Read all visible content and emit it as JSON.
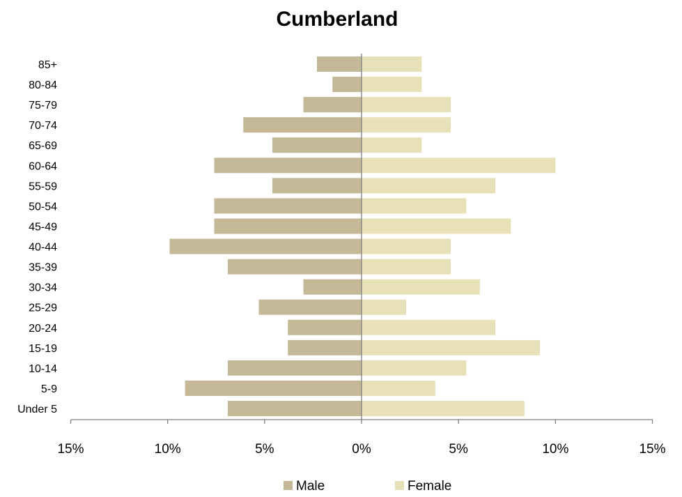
{
  "chart_data": {
    "type": "bar",
    "orientation": "horizontal",
    "subtype": "population-pyramid",
    "title": "Cumberland",
    "categories": [
      "85+",
      "80-84",
      "75-79",
      "70-74",
      "65-69",
      "60-64",
      "55-59",
      "50-54",
      "45-49",
      "40-44",
      "35-39",
      "30-34",
      "25-29",
      "20-24",
      "15-19",
      "10-14",
      "5-9",
      "Under 5"
    ],
    "series": [
      {
        "name": "Male",
        "color": "#c4b896",
        "direction": "left",
        "values": [
          2.3,
          1.5,
          3.0,
          6.1,
          4.6,
          7.6,
          4.6,
          7.6,
          7.6,
          9.9,
          6.9,
          3.0,
          5.3,
          3.8,
          3.8,
          6.9,
          9.1,
          6.9
        ]
      },
      {
        "name": "Female",
        "color": "#e8e0b6",
        "direction": "right",
        "values": [
          3.1,
          3.1,
          4.6,
          4.6,
          3.1,
          10.0,
          6.9,
          5.4,
          7.7,
          4.6,
          4.6,
          6.1,
          2.3,
          6.9,
          9.2,
          5.4,
          3.8,
          8.4
        ]
      }
    ],
    "xlim": [
      -15,
      15
    ],
    "xticks": [
      {
        "value": -15,
        "label": "15%"
      },
      {
        "value": -10,
        "label": "10%"
      },
      {
        "value": -5,
        "label": "5%"
      },
      {
        "value": 0,
        "label": "0%"
      },
      {
        "value": 5,
        "label": "5%"
      },
      {
        "value": 10,
        "label": "10%"
      },
      {
        "value": 15,
        "label": "15%"
      }
    ],
    "xlabel": "",
    "ylabel": "",
    "grid": false,
    "legend": {
      "position": "bottom",
      "entries": [
        "Male",
        "Female"
      ]
    },
    "axis_color": "#808080"
  }
}
